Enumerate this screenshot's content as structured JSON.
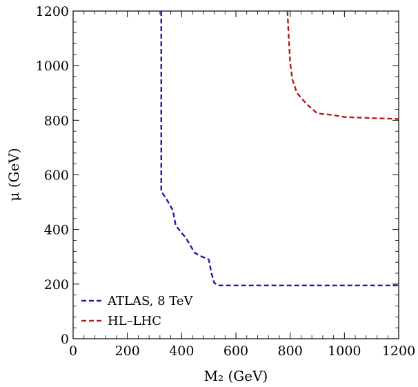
{
  "chart_data": {
    "type": "line",
    "xlabel": "M₂ (GeV)",
    "ylabel": "μ (GeV)",
    "xlim": [
      0,
      1200
    ],
    "ylim": [
      0,
      1200
    ],
    "xticks": [
      0,
      200,
      400,
      600,
      800,
      1000,
      1200
    ],
    "yticks": [
      0,
      200,
      400,
      600,
      800,
      1000,
      1200
    ],
    "grid": false,
    "legend_position": "bottom-left",
    "series": [
      {
        "name": "ATLAS, 8 TeV",
        "color": "#1a1ab4",
        "style": "dashed",
        "x": [
          325,
          325,
          325,
          345,
          368,
          378,
          398,
          415,
          430,
          448,
          465,
          500,
          510,
          520,
          535,
          1200
        ],
        "y": [
          1200,
          800,
          540,
          510,
          470,
          415,
          390,
          370,
          345,
          315,
          305,
          290,
          240,
          205,
          195,
          195
        ]
      },
      {
        "name": "HL–LHC",
        "color": "#b41a1a",
        "style": "dashed",
        "x": [
          790,
          795,
          800,
          808,
          825,
          860,
          900,
          950,
          1000,
          1100,
          1200
        ],
        "y": [
          1200,
          1100,
          1010,
          950,
          900,
          860,
          825,
          820,
          812,
          808,
          805
        ]
      }
    ]
  }
}
